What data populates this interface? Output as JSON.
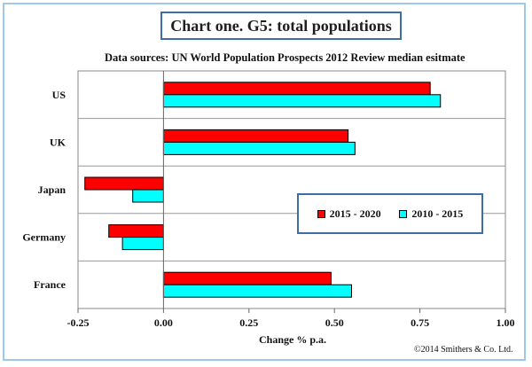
{
  "title": "Chart one. G5: total populations",
  "subtitle": "Data sources: UN World Population Prospects 2012 Review median esitmate",
  "copyright": "©2014 Smithers & Co. Ltd.",
  "colors": {
    "series_2015_2020": "#ff0000",
    "series_2010_2015": "#00ffff"
  },
  "chart_data": {
    "type": "bar",
    "orientation": "horizontal",
    "categories": [
      "US",
      "UK",
      "Japan",
      "Germany",
      "France"
    ],
    "series": [
      {
        "name": "2015 - 2020",
        "values": [
          0.78,
          0.54,
          -0.23,
          -0.16,
          0.49
        ]
      },
      {
        "name": "2010 - 2015",
        "values": [
          0.81,
          0.56,
          -0.09,
          -0.12,
          0.55
        ]
      }
    ],
    "xlabel": "Change % p.a.",
    "xlim": [
      -0.25,
      1.0
    ],
    "xticks": [
      "-0.25",
      "0.00",
      "0.25",
      "0.50",
      "0.75",
      "1.00"
    ],
    "xtick_values": [
      -0.25,
      0,
      0.25,
      0.5,
      0.75,
      1.0
    ],
    "grid": "horizontal category separators",
    "legend_position": "right-middle"
  }
}
